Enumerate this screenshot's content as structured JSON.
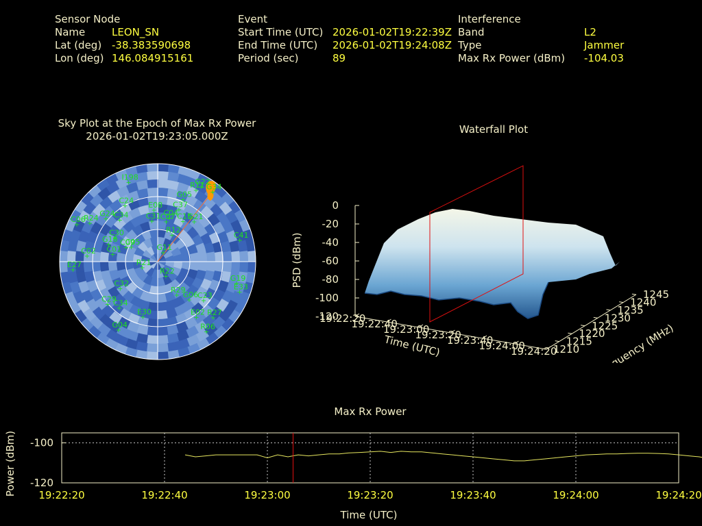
{
  "sensor": {
    "heading": "Sensor Node",
    "name_label": "Name",
    "name_value": "LEON_SN",
    "lat_label": "Lat (deg)",
    "lat_value": "-38.383590698",
    "lon_label": "Lon (deg)",
    "lon_value": "146.084915161"
  },
  "event": {
    "heading": "Event",
    "start_label": "Start Time (UTC)",
    "start_value": "2026-01-02T19:22:39Z",
    "end_label": "End Time (UTC)",
    "end_value": "2026-01-02T19:24:08Z",
    "period_label": "Period (sec)",
    "period_value": "89"
  },
  "interference": {
    "heading": "Interference",
    "band_label": "Band",
    "band_value": "L2",
    "type_label": "Type",
    "type_value": "Jammer",
    "power_label": "Max Rx Power (dBm)",
    "power_value": "-104.03"
  },
  "skyplot": {
    "title": "Sky Plot at the Epoch of Max Rx Power",
    "epoch": "2026-01-02T19:23:05.000Z",
    "satellites": [
      {
        "id": "I198",
        "az": 340,
        "el": 12
      },
      {
        "id": "R11",
        "az": 28,
        "el": 15
      },
      {
        "id": "G05",
        "az": 22,
        "el": 28
      },
      {
        "id": "C37",
        "az": 22,
        "el": 38
      },
      {
        "id": "C04",
        "az": 15,
        "el": 48
      },
      {
        "id": "C07",
        "az": 12,
        "el": 52
      },
      {
        "id": "E08",
        "az": 356,
        "el": 42
      },
      {
        "id": "C24",
        "az": 330,
        "el": 30
      },
      {
        "id": "C31",
        "az": 352,
        "el": 52
      },
      {
        "id": "G21",
        "az": 42,
        "el": 40
      },
      {
        "id": "C15",
        "az": 32,
        "el": 46
      },
      {
        "id": "R12",
        "az": 28,
        "el": 62
      },
      {
        "id": "C41",
        "az": 75,
        "el": 12
      },
      {
        "id": "R24",
        "az": 300,
        "el": 18
      },
      {
        "id": "G24",
        "az": 310,
        "el": 28
      },
      {
        "id": "C34",
        "az": 318,
        "el": 38
      },
      {
        "id": "C06",
        "az": 295,
        "el": 8
      },
      {
        "id": "C30",
        "az": 300,
        "el": 45
      },
      {
        "id": "C09",
        "az": 295,
        "el": 58
      },
      {
        "id": "C05",
        "az": 300,
        "el": 62
      },
      {
        "id": "G16",
        "az": 290,
        "el": 42
      },
      {
        "id": "C01",
        "az": 280,
        "el": 48
      },
      {
        "id": "C02",
        "az": 275,
        "el": 25
      },
      {
        "id": "R21",
        "az": 250,
        "el": 75
      },
      {
        "id": "R22",
        "az": 150,
        "el": 75
      },
      {
        "id": "G11",
        "az": 30,
        "el": 80
      },
      {
        "id": "E27",
        "az": 265,
        "el": 12
      },
      {
        "id": "C32",
        "az": 235,
        "el": 48
      },
      {
        "id": "C29",
        "az": 230,
        "el": 30
      },
      {
        "id": "C34b",
        "az": 220,
        "el": 35
      },
      {
        "id": "E30",
        "az": 195,
        "el": 38
      },
      {
        "id": "G04",
        "az": 210,
        "el": 18
      },
      {
        "id": "R29",
        "az": 150,
        "el": 55
      },
      {
        "id": "G06",
        "az": 140,
        "el": 45
      },
      {
        "id": "C23",
        "az": 130,
        "el": 35
      },
      {
        "id": "E02",
        "az": 145,
        "el": 28
      },
      {
        "id": "R27",
        "az": 135,
        "el": 18
      },
      {
        "id": "R06",
        "az": 145,
        "el": 12
      },
      {
        "id": "G19",
        "az": 105,
        "el": 15
      },
      {
        "id": "E33",
        "az": 110,
        "el": 10
      },
      {
        "id": "G34",
        "az": 38,
        "el": 8
      },
      {
        "id": "G22",
        "az": 30,
        "el": 10
      }
    ]
  },
  "waterfall": {
    "title": "Waterfall Plot",
    "zlabel": "PSD (dBm)",
    "xlabel": "Time (UTC)",
    "ylabel": "Frequency (MHz)",
    "zticks": [
      "0",
      "-20",
      "-40",
      "-60",
      "-80",
      "-100",
      "-120"
    ],
    "xticks": [
      "19:22:20",
      "19:22:40",
      "19:23:00",
      "19:23:20",
      "19:23:40",
      "19:24:00",
      "19:24:20"
    ],
    "yticks": [
      "1210",
      "1215",
      "1220",
      "1225",
      "1230",
      "1235",
      "1240",
      "1245"
    ]
  },
  "maxpower": {
    "title": "Max Rx Power",
    "ylabel": "Power (dBm)",
    "xlabel": "Time (UTC)",
    "yticks": [
      "-100",
      "-120"
    ],
    "xticks": [
      "19:22:20",
      "19:22:40",
      "19:23:00",
      "19:23:20",
      "19:23:40",
      "19:24:00",
      "19:24:20"
    ]
  },
  "chart_data": {
    "type": "line",
    "title": "Max Rx Power",
    "xlabel": "Time (UTC)",
    "ylabel": "Power (dBm)",
    "ylim": [
      -120,
      -95
    ],
    "xlim": [
      "19:22:20",
      "19:24:20"
    ],
    "marker_time": "19:23:05",
    "series": [
      {
        "x": [
          24,
          26,
          28,
          30,
          34,
          38,
          40,
          42,
          44,
          46,
          48,
          50,
          52,
          54,
          56,
          58,
          60,
          62,
          64,
          66,
          68,
          70,
          72,
          74,
          76,
          78,
          80,
          82,
          84,
          86,
          88,
          90,
          92,
          94,
          96,
          98,
          100,
          102,
          104,
          106,
          108,
          110,
          112,
          114,
          116,
          118,
          120,
          122,
          124,
          126,
          128
        ],
        "values": [
          -106,
          -107,
          -106.5,
          -106,
          -106,
          -106,
          -107.5,
          -106,
          -107,
          -106,
          -106.5,
          -106,
          -105.5,
          -105.5,
          -105,
          -104.8,
          -104.5,
          -104.2,
          -104.8,
          -104.2,
          -104.5,
          -104.5,
          -105,
          -105.5,
          -106,
          -106.5,
          -107,
          -107.5,
          -108,
          -108.5,
          -109,
          -109,
          -108.5,
          -108,
          -107.5,
          -107,
          -106.5,
          -106,
          -105.8,
          -105.5,
          -105.5,
          -105.3,
          -105.2,
          -105.2,
          -105.3,
          -105.5,
          -106,
          -106.5,
          -107,
          -108,
          -109
        ]
      }
    ]
  }
}
